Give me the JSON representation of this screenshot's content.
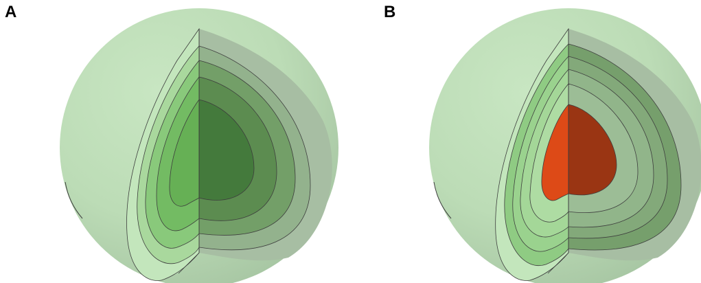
{
  "panels": [
    {
      "label": "A"
    },
    {
      "label": "B"
    }
  ],
  "colors": {
    "sphere_light": "#c4e3bf",
    "sphere_shadow": "#a9c8a6",
    "cut_face_shadow": "#a7bea3",
    "layer_front": [
      "#c3e6bc",
      "#a9d89d",
      "#89c97b",
      "#73bb63",
      "#66b055"
    ],
    "layer_back": [
      "#a7bea3",
      "#93b28d",
      "#739f68",
      "#5c8c50",
      "#447a3c"
    ],
    "core_front": "#dd4a17",
    "core_back": "#9a3513",
    "outline": "#3d3d3d"
  }
}
